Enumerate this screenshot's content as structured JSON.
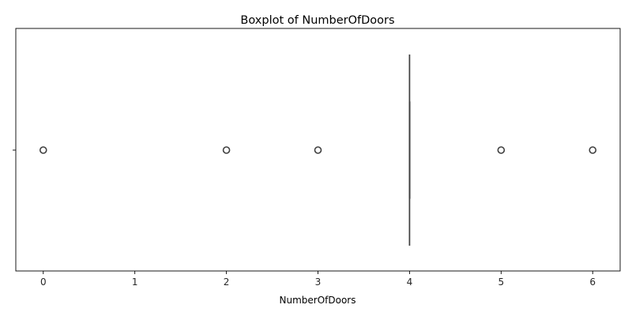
{
  "chart_data": {
    "type": "boxplot",
    "title": "Boxplot of NumberOfDoors",
    "xlabel": "NumberOfDoors",
    "ylabel": "",
    "xlim": [
      -0.3,
      6.3
    ],
    "xticks": [
      "0",
      "1",
      "2",
      "3",
      "4",
      "5",
      "6"
    ],
    "yticks": [
      ""
    ],
    "grid": false,
    "orientation": "horizontal",
    "box": {
      "q1": 4,
      "median": 4,
      "q3": 4,
      "whisker_low": 4,
      "whisker_high": 4
    },
    "outliers": [
      0,
      2,
      3,
      5,
      6
    ],
    "colors": {
      "box_line": "#3f3f3f",
      "outlier_edge": "#3f3f3f",
      "axes": "#000000",
      "text": "#262626"
    }
  }
}
